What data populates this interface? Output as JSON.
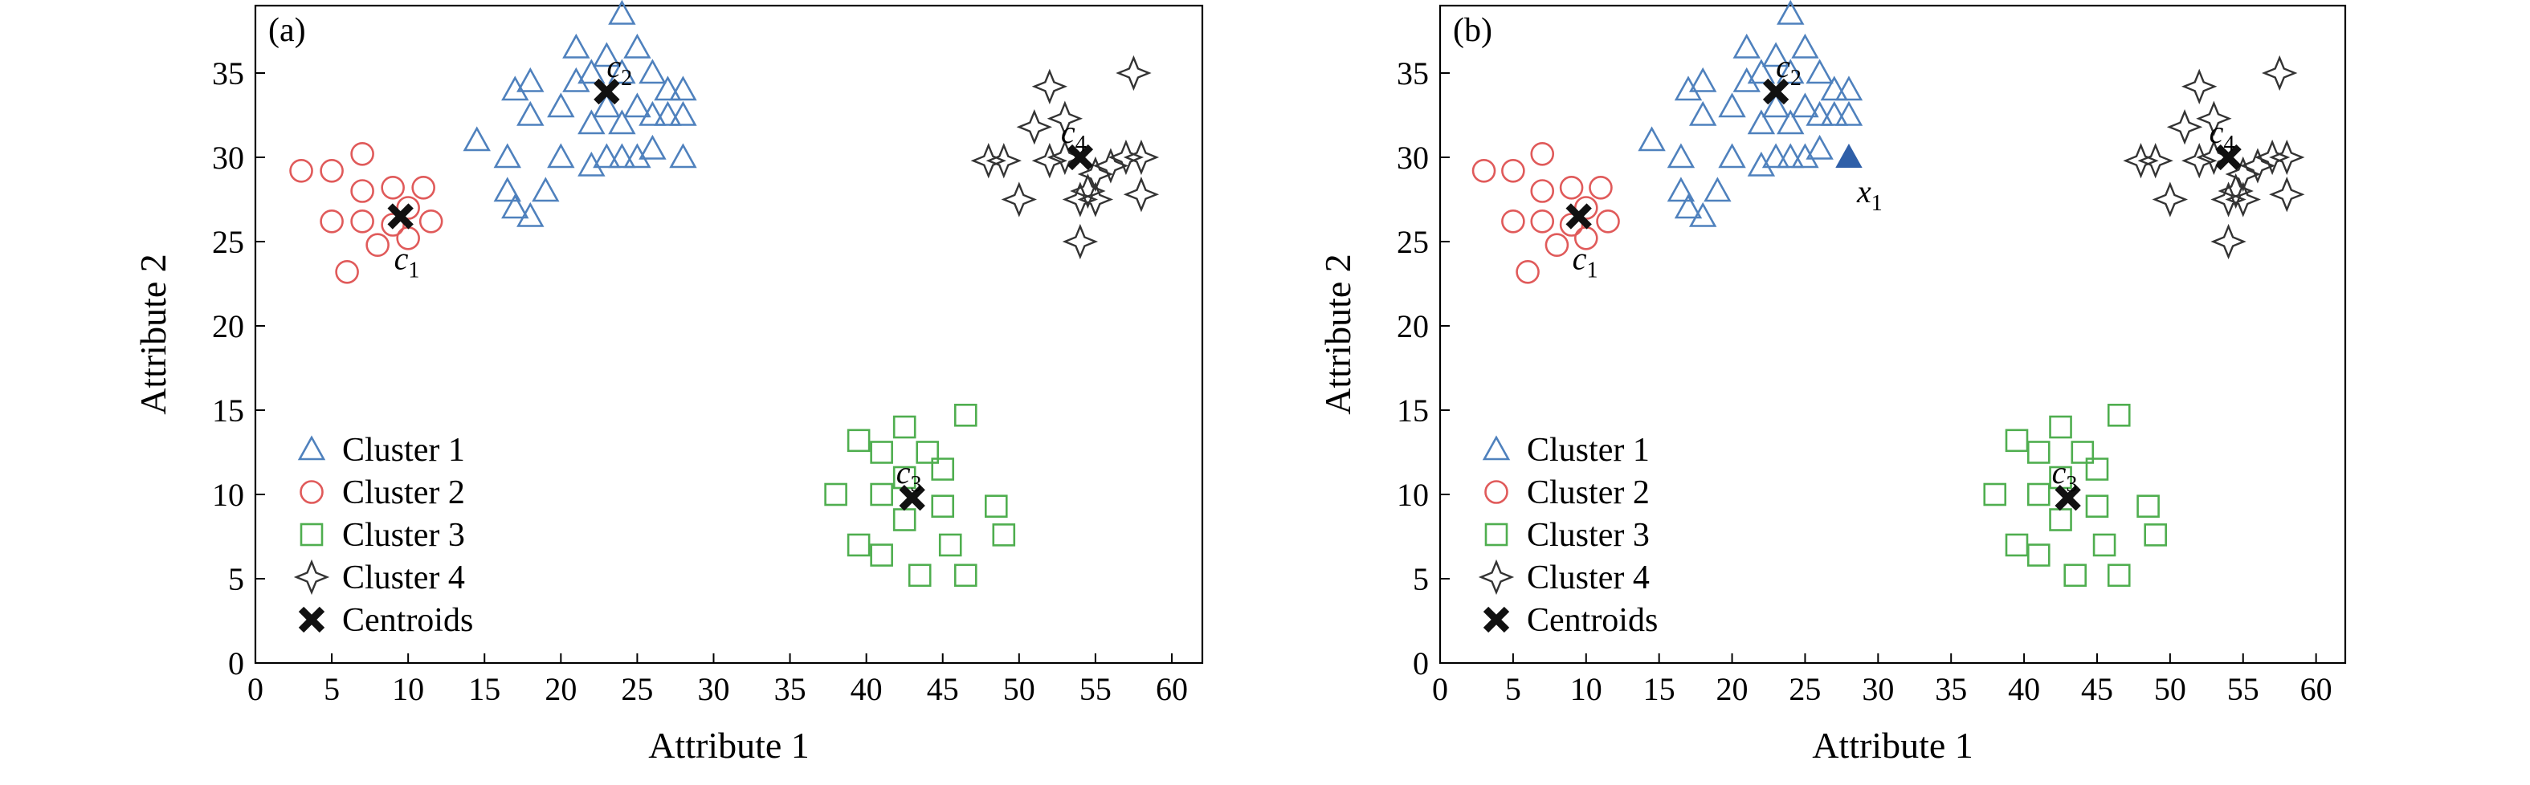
{
  "colors": {
    "cluster1": "#4f81bd",
    "cluster2": "#e05a5a",
    "cluster3": "#4fae4f",
    "cluster4": "#333333",
    "centroid": "#111111",
    "x1_point": "#2f5fa8"
  },
  "icons": {
    "cluster1": "triangle-outline-icon",
    "cluster2": "circle-outline-icon",
    "cluster3": "square-outline-icon",
    "cluster4": "four-point-star-icon",
    "centroid": "x-cross-icon",
    "x1_point": "filled-triangle-icon"
  },
  "chart_data": [
    {
      "type": "scatter",
      "panel_label": "(a)",
      "xlabel": "Attribute 1",
      "ylabel": "Attribute 2",
      "xlim": [
        0,
        62
      ],
      "ylim": [
        0,
        39
      ],
      "xticks": [
        0,
        5,
        10,
        15,
        20,
        25,
        30,
        35,
        40,
        45,
        50,
        55,
        60
      ],
      "yticks": [
        0,
        5,
        10,
        15,
        20,
        25,
        30,
        35
      ],
      "legend_position": "bottom-left",
      "series": [
        {
          "name": "Cluster 1",
          "marker": "triangle",
          "points": [
            [
              14.5,
              31
            ],
            [
              16.5,
              30
            ],
            [
              16.5,
              28
            ],
            [
              17,
              27
            ],
            [
              17,
              34
            ],
            [
              18,
              34.5
            ],
            [
              18,
              32.5
            ],
            [
              18,
              26.5
            ],
            [
              19,
              28
            ],
            [
              20,
              30
            ],
            [
              20,
              33
            ],
            [
              21,
              34.5
            ],
            [
              21,
              36.5
            ],
            [
              22,
              29.5
            ],
            [
              22,
              32
            ],
            [
              22,
              35
            ],
            [
              23,
              30
            ],
            [
              23,
              33
            ],
            [
              23,
              36
            ],
            [
              24,
              38.5
            ],
            [
              24,
              30
            ],
            [
              24,
              32
            ],
            [
              24,
              35
            ],
            [
              25,
              36.5
            ],
            [
              25,
              33
            ],
            [
              25,
              30
            ],
            [
              26,
              32.5
            ],
            [
              26,
              35
            ],
            [
              27,
              32.5
            ],
            [
              27,
              34
            ],
            [
              28,
              34
            ],
            [
              28,
              32.5
            ],
            [
              28,
              30
            ],
            [
              26,
              30.5
            ]
          ]
        },
        {
          "name": "Cluster 2",
          "marker": "circle",
          "points": [
            [
              3,
              29.2
            ],
            [
              5,
              29.2
            ],
            [
              5,
              26.2
            ],
            [
              6,
              23.2
            ],
            [
              7,
              30.2
            ],
            [
              7,
              28
            ],
            [
              7,
              26.2
            ],
            [
              8,
              24.8
            ],
            [
              9,
              28.2
            ],
            [
              10,
              27
            ],
            [
              10,
              25.2
            ],
            [
              11,
              28.2
            ],
            [
              11.5,
              26.2
            ],
            [
              9,
              26
            ]
          ]
        },
        {
          "name": "Cluster 3",
          "marker": "square",
          "points": [
            [
              38,
              10
            ],
            [
              39.5,
              13.2
            ],
            [
              39.5,
              7
            ],
            [
              41,
              12.5
            ],
            [
              41,
              10
            ],
            [
              41,
              6.4
            ],
            [
              42.5,
              14
            ],
            [
              42.5,
              11
            ],
            [
              42.5,
              8.5
            ],
            [
              43.5,
              5.2
            ],
            [
              44,
              12.5
            ],
            [
              45,
              11.5
            ],
            [
              45,
              9.3
            ],
            [
              45.5,
              7
            ],
            [
              46.5,
              14.7
            ],
            [
              46.5,
              5.2
            ],
            [
              48.5,
              9.3
            ],
            [
              49,
              7.6
            ]
          ]
        },
        {
          "name": "Cluster 4",
          "marker": "star4",
          "points": [
            [
              48,
              29.8
            ],
            [
              49,
              29.8
            ],
            [
              50,
              27.5
            ],
            [
              51,
              31.8
            ],
            [
              52,
              29.8
            ],
            [
              52,
              34.2
            ],
            [
              53,
              32.3
            ],
            [
              53,
              30
            ],
            [
              54,
              27.5
            ],
            [
              54,
              25
            ],
            [
              54.5,
              28
            ],
            [
              55,
              27.5
            ],
            [
              56,
              29.5
            ],
            [
              57,
              30
            ],
            [
              57.5,
              35
            ],
            [
              58,
              27.8
            ],
            [
              58,
              30
            ],
            [
              55,
              29
            ]
          ]
        },
        {
          "name": "Centroids",
          "marker": "x",
          "points": [
            [
              9.5,
              26.5
            ],
            [
              23,
              33.9
            ],
            [
              43,
              9.8
            ],
            [
              54,
              30
            ]
          ]
        }
      ],
      "annotations": [
        {
          "base": "c",
          "sub": "1"
        },
        {
          "base": "c",
          "sub": "2"
        },
        {
          "base": "c",
          "sub": "3"
        },
        {
          "base": "c",
          "sub": "4"
        }
      ]
    },
    {
      "type": "scatter",
      "panel_label": "(b)",
      "xlabel": "Attribute 1",
      "ylabel": "Attribute 2",
      "xlim": [
        0,
        62
      ],
      "ylim": [
        0,
        39
      ],
      "xticks": [
        0,
        5,
        10,
        15,
        20,
        25,
        30,
        35,
        40,
        45,
        50,
        55,
        60
      ],
      "yticks": [
        0,
        5,
        10,
        15,
        20,
        25,
        30,
        35
      ],
      "legend_position": "bottom-left",
      "series": [
        {
          "name": "Cluster 1",
          "marker": "triangle",
          "points": [
            [
              14.5,
              31
            ],
            [
              16.5,
              30
            ],
            [
              16.5,
              28
            ],
            [
              17,
              27
            ],
            [
              17,
              34
            ],
            [
              18,
              34.5
            ],
            [
              18,
              32.5
            ],
            [
              18,
              26.5
            ],
            [
              19,
              28
            ],
            [
              20,
              30
            ],
            [
              20,
              33
            ],
            [
              21,
              34.5
            ],
            [
              21,
              36.5
            ],
            [
              22,
              29.5
            ],
            [
              22,
              32
            ],
            [
              22,
              35
            ],
            [
              23,
              30
            ],
            [
              23,
              33
            ],
            [
              23,
              36
            ],
            [
              24,
              38.5
            ],
            [
              24,
              30
            ],
            [
              24,
              32
            ],
            [
              24,
              35
            ],
            [
              25,
              36.5
            ],
            [
              25,
              33
            ],
            [
              25,
              30
            ],
            [
              26,
              32.5
            ],
            [
              26,
              35
            ],
            [
              27,
              32.5
            ],
            [
              27,
              34
            ],
            [
              28,
              34
            ],
            [
              28,
              32.5
            ],
            [
              26,
              30.5
            ]
          ]
        },
        {
          "name": "Cluster 2",
          "marker": "circle",
          "points": [
            [
              3,
              29.2
            ],
            [
              5,
              29.2
            ],
            [
              5,
              26.2
            ],
            [
              6,
              23.2
            ],
            [
              7,
              30.2
            ],
            [
              7,
              28
            ],
            [
              7,
              26.2
            ],
            [
              8,
              24.8
            ],
            [
              9,
              28.2
            ],
            [
              10,
              27
            ],
            [
              10,
              25.2
            ],
            [
              11,
              28.2
            ],
            [
              11.5,
              26.2
            ],
            [
              9,
              26
            ]
          ]
        },
        {
          "name": "Cluster 3",
          "marker": "square",
          "points": [
            [
              38,
              10
            ],
            [
              39.5,
              13.2
            ],
            [
              39.5,
              7
            ],
            [
              41,
              12.5
            ],
            [
              41,
              10
            ],
            [
              41,
              6.4
            ],
            [
              42.5,
              14
            ],
            [
              42.5,
              11
            ],
            [
              42.5,
              8.5
            ],
            [
              43.5,
              5.2
            ],
            [
              44,
              12.5
            ],
            [
              45,
              11.5
            ],
            [
              45,
              9.3
            ],
            [
              45.5,
              7
            ],
            [
              46.5,
              14.7
            ],
            [
              46.5,
              5.2
            ],
            [
              48.5,
              9.3
            ],
            [
              49,
              7.6
            ]
          ]
        },
        {
          "name": "Cluster 4",
          "marker": "star4",
          "points": [
            [
              48,
              29.8
            ],
            [
              49,
              29.8
            ],
            [
              50,
              27.5
            ],
            [
              51,
              31.8
            ],
            [
              52,
              29.8
            ],
            [
              52,
              34.2
            ],
            [
              53,
              32.3
            ],
            [
              53,
              30
            ],
            [
              54,
              27.5
            ],
            [
              54,
              25
            ],
            [
              54.5,
              28
            ],
            [
              55,
              27.5
            ],
            [
              56,
              29.5
            ],
            [
              57,
              30
            ],
            [
              57.5,
              35
            ],
            [
              58,
              27.8
            ],
            [
              58,
              30
            ],
            [
              55,
              29
            ]
          ]
        },
        {
          "name": "Centroids",
          "marker": "x",
          "points": [
            [
              9.5,
              26.5
            ],
            [
              23,
              33.9
            ],
            [
              43,
              9.8
            ],
            [
              54,
              30
            ]
          ]
        },
        {
          "name": "x1",
          "marker": "filled-triangle",
          "points": [
            [
              28,
              30
            ]
          ]
        }
      ],
      "annotations": [
        {
          "base": "c",
          "sub": "1"
        },
        {
          "base": "c",
          "sub": "2"
        },
        {
          "base": "c",
          "sub": "3"
        },
        {
          "base": "c",
          "sub": "4"
        },
        {
          "base": "x",
          "sub": "1"
        }
      ]
    }
  ]
}
